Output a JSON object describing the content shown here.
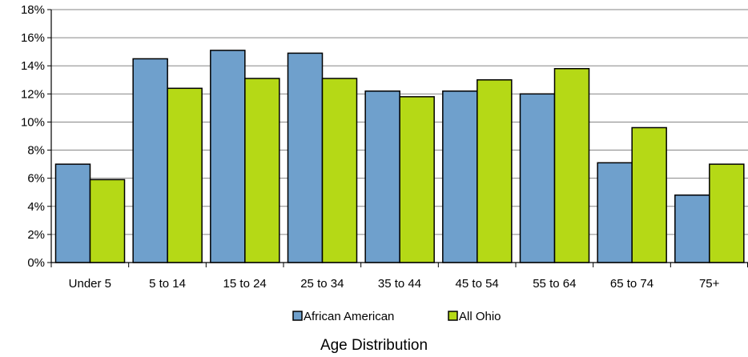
{
  "chart_data": {
    "type": "bar",
    "title": "Age Distribution",
    "xlabel": "",
    "ylabel": "",
    "categories": [
      "Under 5",
      "5 to 14",
      "15 to 24",
      "25 to 34",
      "35 to 44",
      "45 to 54",
      "55 to 64",
      "65 to 74",
      "75+"
    ],
    "series": [
      {
        "name": "African American",
        "color": "#6fa0cc",
        "values": [
          7.0,
          14.5,
          15.1,
          14.9,
          12.2,
          12.2,
          12.0,
          7.1,
          4.8
        ]
      },
      {
        "name": "All Ohio",
        "color": "#b5d916",
        "values": [
          5.9,
          12.4,
          13.1,
          13.1,
          11.8,
          13.0,
          13.8,
          9.6,
          7.0
        ]
      }
    ],
    "ylim": [
      0,
      18
    ],
    "yticks": [
      0,
      2,
      4,
      6,
      8,
      10,
      12,
      14,
      16,
      18
    ],
    "ytick_suffix": "%",
    "grid": true,
    "legend": "bottom"
  }
}
